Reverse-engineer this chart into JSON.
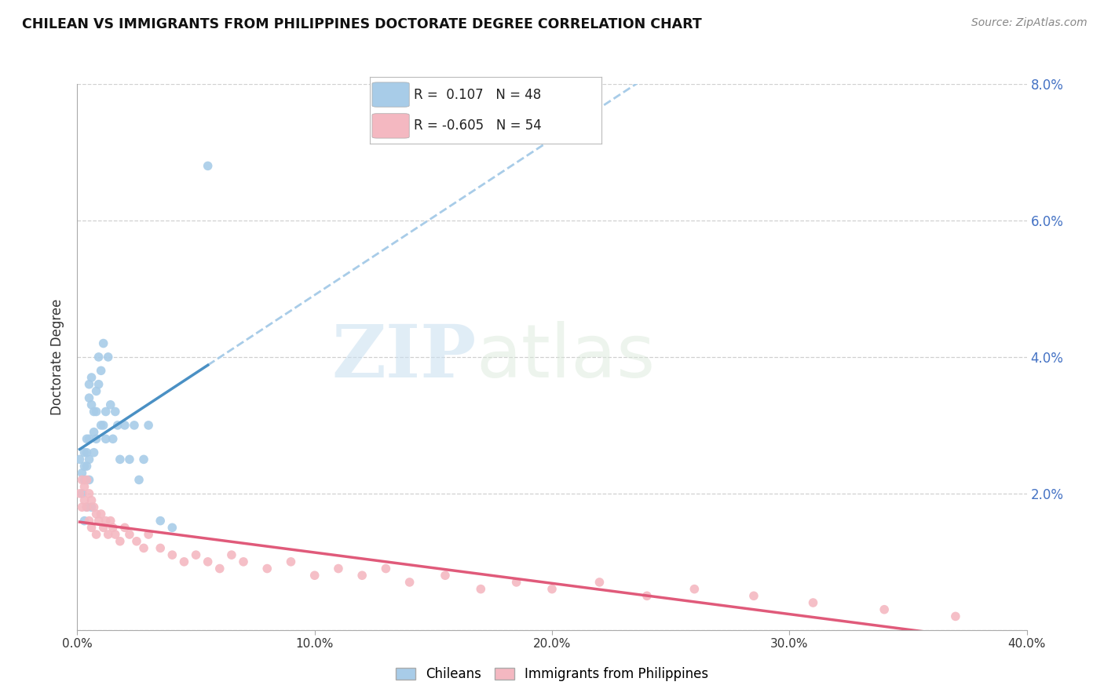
{
  "title": "CHILEAN VS IMMIGRANTS FROM PHILIPPINES DOCTORATE DEGREE CORRELATION CHART",
  "source": "Source: ZipAtlas.com",
  "ylabel": "Doctorate Degree",
  "xlabel": "",
  "xlim": [
    0,
    0.4
  ],
  "ylim": [
    0,
    0.08
  ],
  "yticks": [
    0.0,
    0.02,
    0.04,
    0.06,
    0.08
  ],
  "ytick_labels": [
    "",
    "2.0%",
    "4.0%",
    "6.0%",
    "8.0%"
  ],
  "xticks": [
    0.0,
    0.1,
    0.2,
    0.3,
    0.4
  ],
  "xtick_labels": [
    "0.0%",
    "10.0%",
    "20.0%",
    "30.0%",
    "40.0%"
  ],
  "chilean_R": 0.107,
  "chilean_N": 48,
  "philippines_R": -0.605,
  "philippines_N": 54,
  "chilean_color": "#a8cce8",
  "philippines_color": "#f4b8c1",
  "chilean_line_color": "#4a90c4",
  "philippines_line_color": "#e05a7a",
  "trend_line_color": "#a8cce8",
  "background_color": "#ffffff",
  "grid_color": "#d0d0d0",
  "watermark_zip": "ZIP",
  "watermark_atlas": "atlas",
  "chilean_x": [
    0.001,
    0.002,
    0.002,
    0.003,
    0.003,
    0.003,
    0.003,
    0.004,
    0.004,
    0.004,
    0.004,
    0.005,
    0.005,
    0.005,
    0.005,
    0.005,
    0.006,
    0.006,
    0.006,
    0.007,
    0.007,
    0.007,
    0.008,
    0.008,
    0.008,
    0.009,
    0.009,
    0.01,
    0.01,
    0.011,
    0.011,
    0.012,
    0.012,
    0.013,
    0.014,
    0.015,
    0.016,
    0.017,
    0.018,
    0.02,
    0.022,
    0.024,
    0.026,
    0.028,
    0.03,
    0.035,
    0.04,
    0.055
  ],
  "chilean_y": [
    0.025,
    0.023,
    0.02,
    0.026,
    0.024,
    0.022,
    0.016,
    0.028,
    0.026,
    0.024,
    0.018,
    0.036,
    0.034,
    0.028,
    0.025,
    0.022,
    0.037,
    0.033,
    0.018,
    0.032,
    0.029,
    0.026,
    0.035,
    0.032,
    0.028,
    0.04,
    0.036,
    0.038,
    0.03,
    0.042,
    0.03,
    0.032,
    0.028,
    0.04,
    0.033,
    0.028,
    0.032,
    0.03,
    0.025,
    0.03,
    0.025,
    0.03,
    0.022,
    0.025,
    0.03,
    0.016,
    0.015,
    0.068
  ],
  "philippines_x": [
    0.001,
    0.002,
    0.002,
    0.003,
    0.003,
    0.004,
    0.004,
    0.005,
    0.005,
    0.006,
    0.006,
    0.007,
    0.008,
    0.008,
    0.009,
    0.01,
    0.011,
    0.012,
    0.013,
    0.014,
    0.015,
    0.016,
    0.018,
    0.02,
    0.022,
    0.025,
    0.028,
    0.03,
    0.035,
    0.04,
    0.045,
    0.05,
    0.055,
    0.06,
    0.065,
    0.07,
    0.08,
    0.09,
    0.1,
    0.11,
    0.12,
    0.13,
    0.14,
    0.155,
    0.17,
    0.185,
    0.2,
    0.22,
    0.24,
    0.26,
    0.285,
    0.31,
    0.34,
    0.37
  ],
  "philippines_y": [
    0.02,
    0.022,
    0.018,
    0.021,
    0.019,
    0.022,
    0.018,
    0.02,
    0.016,
    0.019,
    0.015,
    0.018,
    0.017,
    0.014,
    0.016,
    0.017,
    0.015,
    0.016,
    0.014,
    0.016,
    0.015,
    0.014,
    0.013,
    0.015,
    0.014,
    0.013,
    0.012,
    0.014,
    0.012,
    0.011,
    0.01,
    0.011,
    0.01,
    0.009,
    0.011,
    0.01,
    0.009,
    0.01,
    0.008,
    0.009,
    0.008,
    0.009,
    0.007,
    0.008,
    0.006,
    0.007,
    0.006,
    0.007,
    0.005,
    0.006,
    0.005,
    0.004,
    0.003,
    0.002
  ]
}
